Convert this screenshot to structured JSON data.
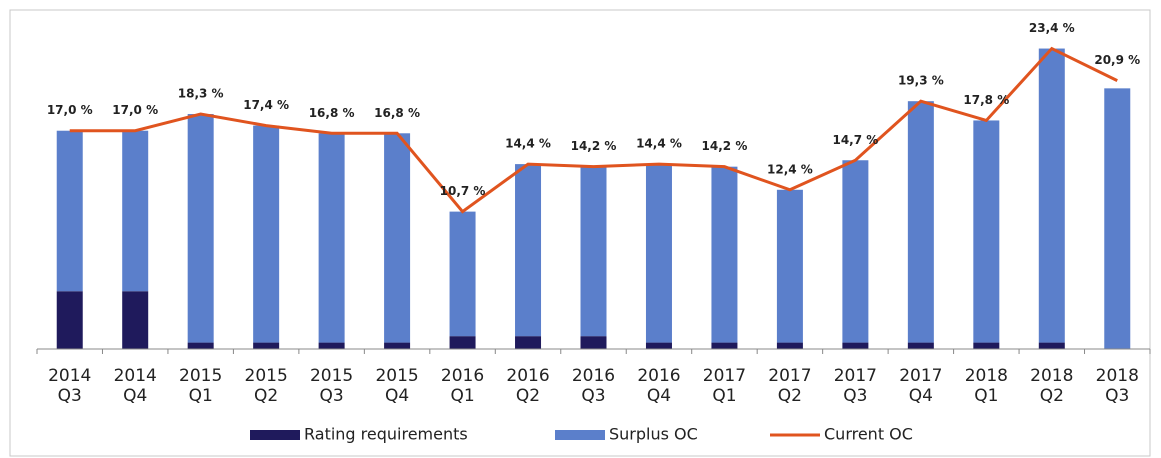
{
  "chart_data": {
    "type": "bar",
    "categories": [
      [
        "2014",
        "Q3"
      ],
      [
        "2014",
        "Q4"
      ],
      [
        "2015",
        "Q1"
      ],
      [
        "2015",
        "Q2"
      ],
      [
        "2015",
        "Q3"
      ],
      [
        "2015",
        "Q4"
      ],
      [
        "2016",
        "Q1"
      ],
      [
        "2016",
        "Q2"
      ],
      [
        "2016",
        "Q3"
      ],
      [
        "2016",
        "Q4"
      ],
      [
        "2017",
        "Q1"
      ],
      [
        "2017",
        "Q2"
      ],
      [
        "2017",
        "Q3"
      ],
      [
        "2017",
        "Q4"
      ],
      [
        "2018",
        "Q1"
      ],
      [
        "2018",
        "Q2"
      ],
      [
        "2018",
        "Q3"
      ]
    ],
    "series": [
      {
        "name": "Rating requirements",
        "type": "bar",
        "color": "#1f1a5c",
        "values": [
          4.5,
          4.5,
          0.5,
          0.5,
          0.5,
          0.5,
          1.0,
          1.0,
          1.0,
          0.5,
          0.5,
          0.5,
          0.5,
          0.5,
          0.5,
          0.5,
          0
        ]
      },
      {
        "name": "Surplus OC",
        "type": "bar",
        "color": "#5b7fcb",
        "values": [
          12.5,
          12.5,
          17.8,
          16.9,
          16.3,
          16.3,
          9.7,
          13.4,
          13.2,
          13.9,
          13.7,
          11.9,
          14.2,
          18.8,
          17.3,
          22.9,
          20.3
        ]
      },
      {
        "name": "Current OC",
        "type": "line",
        "color": "#e0541f",
        "values": [
          17.0,
          17.0,
          18.3,
          17.4,
          16.8,
          16.8,
          10.7,
          14.4,
          14.2,
          14.4,
          14.2,
          12.4,
          14.7,
          19.3,
          17.8,
          23.4,
          20.9
        ],
        "value_labels": [
          "17,0 %",
          "17,0 %",
          "18,3 %",
          "17,4 %",
          "16,8 %",
          "16,8 %",
          "10,7 %",
          "14,4 %",
          "14,2 %",
          "14,4 %",
          "14,2 %",
          "12,4 %",
          "14,7 %",
          "19,3 %",
          "17,8 %",
          "23,4 %",
          "20,9 %"
        ]
      }
    ],
    "ylim": [
      0,
      25
    ]
  }
}
